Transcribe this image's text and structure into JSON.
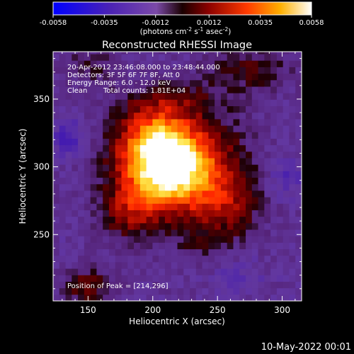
{
  "chart_data": {
    "type": "heatmap",
    "title": "Reconstructed RHESSI Image",
    "xlabel": "Heliocentric X (arcsec)",
    "ylabel": "Heliocentric Y (arcsec)",
    "xlim": [
      123,
      315
    ],
    "ylim": [
      201,
      385
    ],
    "x_ticks": [
      150,
      200,
      250,
      300
    ],
    "y_ticks": [
      250,
      300,
      350
    ],
    "colorbar": {
      "min": -0.0058,
      "max": 0.0058,
      "ticks": [
        "-0.0058",
        "-0.0035",
        "-0.0012",
        "0.0012",
        "0.0035",
        "0.0058"
      ],
      "label": "(photons cm",
      "label_exp1": "-2",
      "label_mid": " s",
      "label_exp2": "-1",
      "label_mid2": " asec",
      "label_exp3": "-2",
      "label_end": ")"
    },
    "annotations": {
      "line1": "20-Apr-2012 23:46:08.000 to 23:48:44.000",
      "line2": "Detectors: 3F 5F 6F 7F 8F, Att 0",
      "line3": "Energy Range: 6.0 - 12.0 keV",
      "line4_a": "Clean",
      "line4_b": "Total counts: 1.81E+04",
      "peak": "Position of Peak = [214,296]"
    },
    "peak": [
      214,
      296
    ],
    "peak_value": 0.0058,
    "blobs": [
      {
        "x": 214,
        "y": 296,
        "sx": 20,
        "sy": 20,
        "amp": 0.0062
      },
      {
        "x": 205,
        "y": 320,
        "sx": 18,
        "sy": 16,
        "amp": 0.0038
      },
      {
        "x": 245,
        "y": 300,
        "sx": 22,
        "sy": 28,
        "amp": 0.0026
      },
      {
        "x": 185,
        "y": 300,
        "sx": 20,
        "sy": 30,
        "amp": 0.0022
      },
      {
        "x": 180,
        "y": 265,
        "sx": 14,
        "sy": 14,
        "amp": 0.0018
      },
      {
        "x": 262,
        "y": 270,
        "sx": 16,
        "sy": 18,
        "amp": 0.0018
      },
      {
        "x": 215,
        "y": 350,
        "sx": 26,
        "sy": 10,
        "amp": 0.0016
      },
      {
        "x": 150,
        "y": 212,
        "sx": 14,
        "sy": 10,
        "amp": 0.0022
      },
      {
        "x": 275,
        "y": 372,
        "sx": 22,
        "sy": 12,
        "amp": 0.0018
      },
      {
        "x": 150,
        "y": 375,
        "sx": 16,
        "sy": 10,
        "amp": 0.0012
      },
      {
        "x": 235,
        "y": 245,
        "sx": 14,
        "sy": 12,
        "amp": 0.001
      }
    ],
    "background": -0.0016,
    "cold_spots": [
      {
        "x": 135,
        "y": 322,
        "sx": 10,
        "sy": 10,
        "amp": -0.0018
      },
      {
        "x": 303,
        "y": 292,
        "sx": 10,
        "sy": 10,
        "amp": -0.0014
      },
      {
        "x": 265,
        "y": 220,
        "sx": 14,
        "sy": 10,
        "amp": -0.001
      }
    ]
  },
  "footer_date": "10-May-2022 00:01"
}
